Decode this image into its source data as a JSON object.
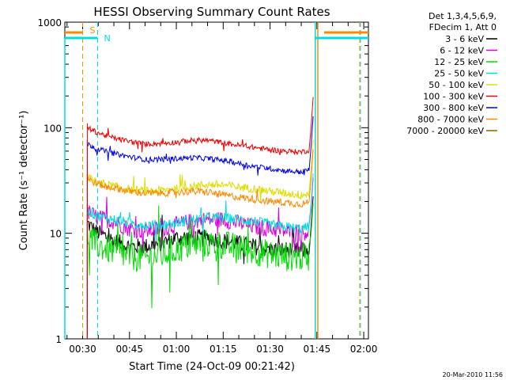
{
  "chart_data": {
    "type": "line",
    "title": "HESSI Observing Summary Count Rates",
    "xlabel": "Start Time (24-Oct-09 00:21:42)",
    "ylabel": "Count Rate (s⁻¹ detector⁻¹)",
    "footer": "20-Mar-2010 11:56",
    "x_range_minutes": [
      24.3,
      121.5
    ],
    "y_range": [
      1,
      1000
    ],
    "y_scale": "log",
    "x_ticks": [
      {
        "value": 30,
        "label": "00:30"
      },
      {
        "value": 45,
        "label": "00:45"
      },
      {
        "value": 60,
        "label": "01:00"
      },
      {
        "value": 75,
        "label": "01:15"
      },
      {
        "value": 90,
        "label": "01:30"
      },
      {
        "value": 105,
        "label": "01:45"
      },
      {
        "value": 120,
        "label": "02:00"
      }
    ],
    "y_ticks": [
      {
        "value": 1,
        "label": "1"
      },
      {
        "value": 10,
        "label": "10"
      },
      {
        "value": 100,
        "label": "100"
      },
      {
        "value": 1000,
        "label": "1000"
      }
    ],
    "legend_header": [
      "Det 1,3,4,5,6,9,",
      "FDecim 1, Att 0"
    ],
    "series": [
      {
        "name": "3 - 6 keV",
        "color": "#000000",
        "x": [
          31.5,
          34,
          37,
          40,
          45,
          50,
          55,
          60,
          65,
          70,
          75,
          80,
          85,
          90,
          95,
          100,
          102.5
        ],
        "y": [
          12.5,
          10.5,
          9.5,
          8.5,
          7.5,
          7.5,
          8,
          9,
          9.2,
          9,
          8.5,
          8,
          7.5,
          7,
          7,
          6.8,
          7
        ]
      },
      {
        "name": "6 - 12 keV",
        "color": "#dd00dd",
        "x": [
          31.5,
          34,
          37,
          40,
          45,
          50,
          55,
          60,
          65,
          70,
          75,
          80,
          85,
          90,
          95,
          100,
          102.5
        ],
        "y": [
          16,
          14.5,
          13.5,
          13,
          11,
          10.5,
          11,
          12,
          13,
          13.5,
          13.5,
          12.5,
          11.5,
          11,
          10.5,
          10,
          10.5
        ]
      },
      {
        "name": "12 - 25 keV",
        "color": "#00dd00",
        "x": [
          31.5,
          34,
          37,
          40,
          45,
          50,
          55,
          60,
          65,
          70,
          75,
          80,
          85,
          90,
          95,
          100,
          102.5
        ],
        "y": [
          9.5,
          8,
          7.2,
          6.8,
          6,
          5.8,
          6.2,
          7,
          7.8,
          8,
          7.8,
          7.2,
          6.8,
          6.3,
          6,
          6,
          6
        ]
      },
      {
        "name": "25 - 50 keV",
        "color": "#00dddd",
        "x": [
          31.5,
          34,
          37,
          40,
          45,
          50,
          55,
          60,
          65,
          70,
          75,
          80,
          85,
          90,
          95,
          100,
          102.5
        ],
        "y": [
          16.5,
          15,
          14,
          13.5,
          12.5,
          12,
          12,
          12.5,
          13.5,
          14,
          14,
          13.5,
          13,
          12,
          11.5,
          11,
          11.5
        ]
      },
      {
        "name": "50 - 100 keV",
        "color": "#dddd00",
        "x": [
          31.5,
          34,
          37,
          40,
          45,
          50,
          55,
          60,
          65,
          70,
          75,
          80,
          85,
          90,
          95,
          100,
          102.5
        ],
        "y": [
          34,
          31,
          29,
          28,
          26,
          25,
          25.5,
          26.5,
          28,
          29,
          28.5,
          27.5,
          26.5,
          25,
          24,
          23,
          24
        ]
      },
      {
        "name": "100 - 300 keV",
        "color": "#ee0000",
        "x": [
          31.5,
          34,
          37,
          40,
          45,
          50,
          55,
          60,
          65,
          70,
          75,
          80,
          85,
          90,
          95,
          100,
          102.5
        ],
        "y": [
          100,
          92,
          85,
          80,
          74,
          70,
          71,
          73,
          76,
          76,
          72,
          68,
          65,
          62,
          60,
          59,
          61
        ]
      },
      {
        "name": "300 - 800 keV",
        "color": "#0000ee",
        "x": [
          31.5,
          34,
          37,
          40,
          45,
          50,
          55,
          60,
          65,
          70,
          75,
          80,
          85,
          90,
          95,
          100,
          102.5
        ],
        "y": [
          70,
          65,
          60,
          57,
          53,
          50,
          50,
          51,
          52,
          51,
          49,
          46,
          43,
          41,
          39,
          38,
          40
        ]
      },
      {
        "name": "800 - 7000 keV",
        "color": "#ff8800",
        "x": [
          31.5,
          34,
          37,
          40,
          45,
          50,
          55,
          60,
          65,
          70,
          75,
          80,
          85,
          90,
          95,
          100,
          102.5
        ],
        "y": [
          33,
          30,
          28,
          27,
          25,
          24,
          24,
          24.5,
          25,
          24.5,
          23,
          22,
          21,
          20,
          19.5,
          19,
          19.5
        ]
      },
      {
        "name": "7000 - 20000 keV",
        "color": "#886600",
        "x": [],
        "y": []
      }
    ],
    "annotations": [
      {
        "text": "S",
        "color": "#ff8800"
      },
      {
        "text": "N",
        "color": "#00dddd"
      }
    ]
  }
}
